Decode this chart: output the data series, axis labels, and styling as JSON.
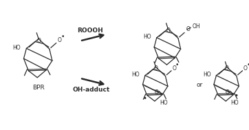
{
  "background_color": "#ffffff",
  "label_bpr": "BPR",
  "label_roooh": "ROOOH",
  "label_oh_adduct": "OH-adduct",
  "label_or": "or",
  "fig_width": 3.62,
  "fig_height": 1.89,
  "line_color": "#2a2a2a",
  "text_color": "#2a2a2a",
  "arrow_color": "#2a2a2a"
}
